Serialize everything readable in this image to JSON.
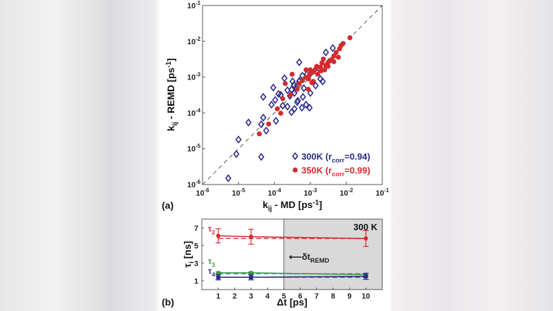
{
  "chart_data": [
    {
      "panel_label": "(a)",
      "type": "scatter",
      "xscale": "log",
      "yscale": "log",
      "xlim": [
        1e-06,
        0.1
      ],
      "ylim": [
        1e-06,
        0.1
      ],
      "xlabel": {
        "main": "k",
        "sub": "ij",
        "rest": " - MD [ps",
        "sup": "-1",
        "end": "]"
      },
      "ylabel": {
        "main": "k",
        "sub": "ij",
        "rest": " - REMD [ps",
        "sup": "-1",
        "end": "]"
      },
      "tick_exponents": [
        "-6",
        "-5",
        "-4",
        "-3",
        "-2",
        "-1"
      ],
      "tick_base": "10",
      "diagonal": "y = x (dashed)",
      "grid": false,
      "legend_placement": "bottom-right",
      "series": [
        {
          "name": "300K",
          "corr_label": "r",
          "corr_sub": "corr",
          "corr_value": "=0.94",
          "label_prefix": "300K (",
          "label_suffix": ")",
          "color": "#2b2b8c",
          "marker": "open-diamond",
          "points": [
            [
              5.2e-06,
              1.5e-06
            ],
            [
              8.7e-06,
              7.1e-06
            ],
            [
              1e-05,
              1.8e-05
            ],
            [
              1.9e-05,
              5.4e-05
            ],
            [
              4.3e-05,
              5.9e-06
            ],
            [
              4.3e-05,
              4.8e-05
            ],
            [
              4.9e-05,
              0.00028
            ],
            [
              4.9e-05,
              7.4e-05
            ],
            [
              5.9e-05,
              3.2e-05
            ],
            [
              0.00011,
              6e-05
            ],
            [
              8.3e-05,
              0.00017
            ],
            [
              9.3e-05,
              0.00051
            ],
            [
              0.000105,
              0.00023
            ],
            [
              0.00013,
              0.00034
            ],
            [
              0.00017,
              0.00016
            ],
            [
              0.00019,
              0.00093
            ],
            [
              0.00023,
              0.00015
            ],
            [
              0.0003,
              0.000105
            ],
            [
              0.00036,
              0.00013
            ],
            [
              0.00032,
              0.00076
            ],
            [
              0.00043,
              0.0002
            ],
            [
              0.00049,
              0.0026
            ],
            [
              0.00058,
              0.00014
            ],
            [
              0.00036,
              0.00036
            ],
            [
              0.00043,
              0.00058
            ],
            [
              0.00062,
              0.00028
            ],
            [
              0.00066,
              0.00049
            ],
            [
              0.00076,
              0.00017
            ],
            [
              0.00095,
              0.00014
            ],
            [
              0.001,
              0.00036
            ],
            [
              0.0014,
              0.00058
            ],
            [
              0.0019,
              0.00089
            ],
            [
              0.0022,
              0.00076
            ],
            [
              0.0027,
              0.0049
            ],
            [
              0.0042,
              0.0065
            ],
            [
              0.0015,
              0.0014
            ],
            [
              0.00015,
              0.00032
            ],
            [
              0.00023,
              0.00043
            ],
            [
              0.00049,
              0.00076
            ],
            [
              0.00035,
              0.0006
            ],
            [
              0.0004,
              0.0005
            ],
            [
              0.0005,
              0.0008
            ],
            [
              0.0003,
              0.00045
            ],
            [
              0.00027,
              0.0003
            ],
            [
              0.0006,
              0.0011
            ],
            [
              0.0008,
              0.0012
            ],
            [
              0.00045,
              0.00022
            ]
          ]
        },
        {
          "name": "350K",
          "corr_label": "r",
          "corr_sub": "corr",
          "corr_value": "=0.99",
          "label_prefix": "350K (",
          "label_suffix": ")",
          "color": "#d42a2e",
          "marker": "filled-circle",
          "points": [
            [
              3.8e-05,
              2.6e-05
            ],
            [
              6.9e-05,
              4.9e-05
            ],
            [
              0.00012,
              0.00013
            ],
            [
              0.00015,
              9.8e-05
            ],
            [
              0.00017,
              0.00025
            ],
            [
              0.0002,
              0.00066
            ],
            [
              0.00031,
              0.0012
            ],
            [
              0.00028,
              0.00032
            ],
            [
              0.00043,
              0.00046
            ],
            [
              0.00049,
              0.00066
            ],
            [
              0.00076,
              0.00098
            ],
            [
              0.00087,
              0.00046
            ],
            [
              0.001,
              0.0016
            ],
            [
              0.0014,
              0.0017
            ],
            [
              0.0019,
              0.0019
            ],
            [
              0.0021,
              0.0025
            ],
            [
              0.0027,
              0.0021
            ],
            [
              0.0034,
              0.0028
            ],
            [
              0.0039,
              0.0031
            ],
            [
              0.0045,
              0.0039
            ],
            [
              0.0052,
              0.0049
            ],
            [
              0.006,
              0.0036
            ],
            [
              0.0065,
              0.0062
            ],
            [
              0.0071,
              0.0076
            ],
            [
              0.0081,
              0.0087
            ],
            [
              0.0126,
              0.0126
            ],
            [
              0.00089,
              0.00089
            ],
            [
              0.0012,
              0.0014
            ],
            [
              0.0016,
              0.0012
            ],
            [
              0.0025,
              0.0016
            ],
            [
              0.0031,
              0.002
            ],
            [
              0.0012,
              0.00076
            ],
            [
              0.0045,
              0.0027
            ],
            [
              0.00076,
              0.0016
            ],
            [
              0.00095,
              0.0012
            ],
            [
              0.0006,
              0.0008
            ],
            [
              0.0011,
              0.0007
            ],
            [
              0.002,
              0.0015
            ],
            [
              0.0015,
              0.002
            ],
            [
              0.003,
              0.0024
            ],
            [
              0.0023,
              0.0032
            ]
          ]
        }
      ]
    },
    {
      "panel_label": "(b)",
      "type": "line",
      "xlim": [
        0,
        11
      ],
      "ylim": [
        0,
        8
      ],
      "xticks": [
        "1",
        "2",
        "3",
        "4",
        "5",
        "6",
        "7",
        "8",
        "9",
        "10"
      ],
      "yticks": [
        "1",
        "3",
        "5",
        "7"
      ],
      "xlabel": "Δt [ps]",
      "ylabel": {
        "main": "τ",
        "sub": "i",
        "rest": " [ns]"
      },
      "corner_label": "300 K",
      "shaded_from_x": 5,
      "annotation": {
        "arrow": "⟵",
        "main": "δt",
        "sub": "REMD"
      },
      "grid": false,
      "series": [
        {
          "name": "τ2",
          "main": "τ",
          "sub": "2",
          "color": "#d42a2e",
          "x": [
            1,
            3,
            10
          ],
          "y": [
            6.1,
            6.0,
            5.8
          ],
          "err": [
            0.8,
            0.85,
            0.9
          ],
          "dashed_level": 5.8
        },
        {
          "name": "τ3",
          "main": "τ",
          "sub": "3",
          "color": "#3a9a45",
          "x": [
            1,
            3,
            10
          ],
          "y": [
            1.9,
            1.9,
            1.7
          ],
          "err": [
            0.1,
            0.1,
            0.15
          ],
          "dashed_level": 1.8
        },
        {
          "name": "τ4",
          "main": "τ",
          "sub": "4",
          "color": "#2b2b8c",
          "x": [
            1,
            3,
            10
          ],
          "y": [
            1.4,
            1.4,
            1.5
          ],
          "err": [
            0.3,
            0.3,
            0.35
          ],
          "dashed_level": 1.4
        }
      ]
    }
  ]
}
